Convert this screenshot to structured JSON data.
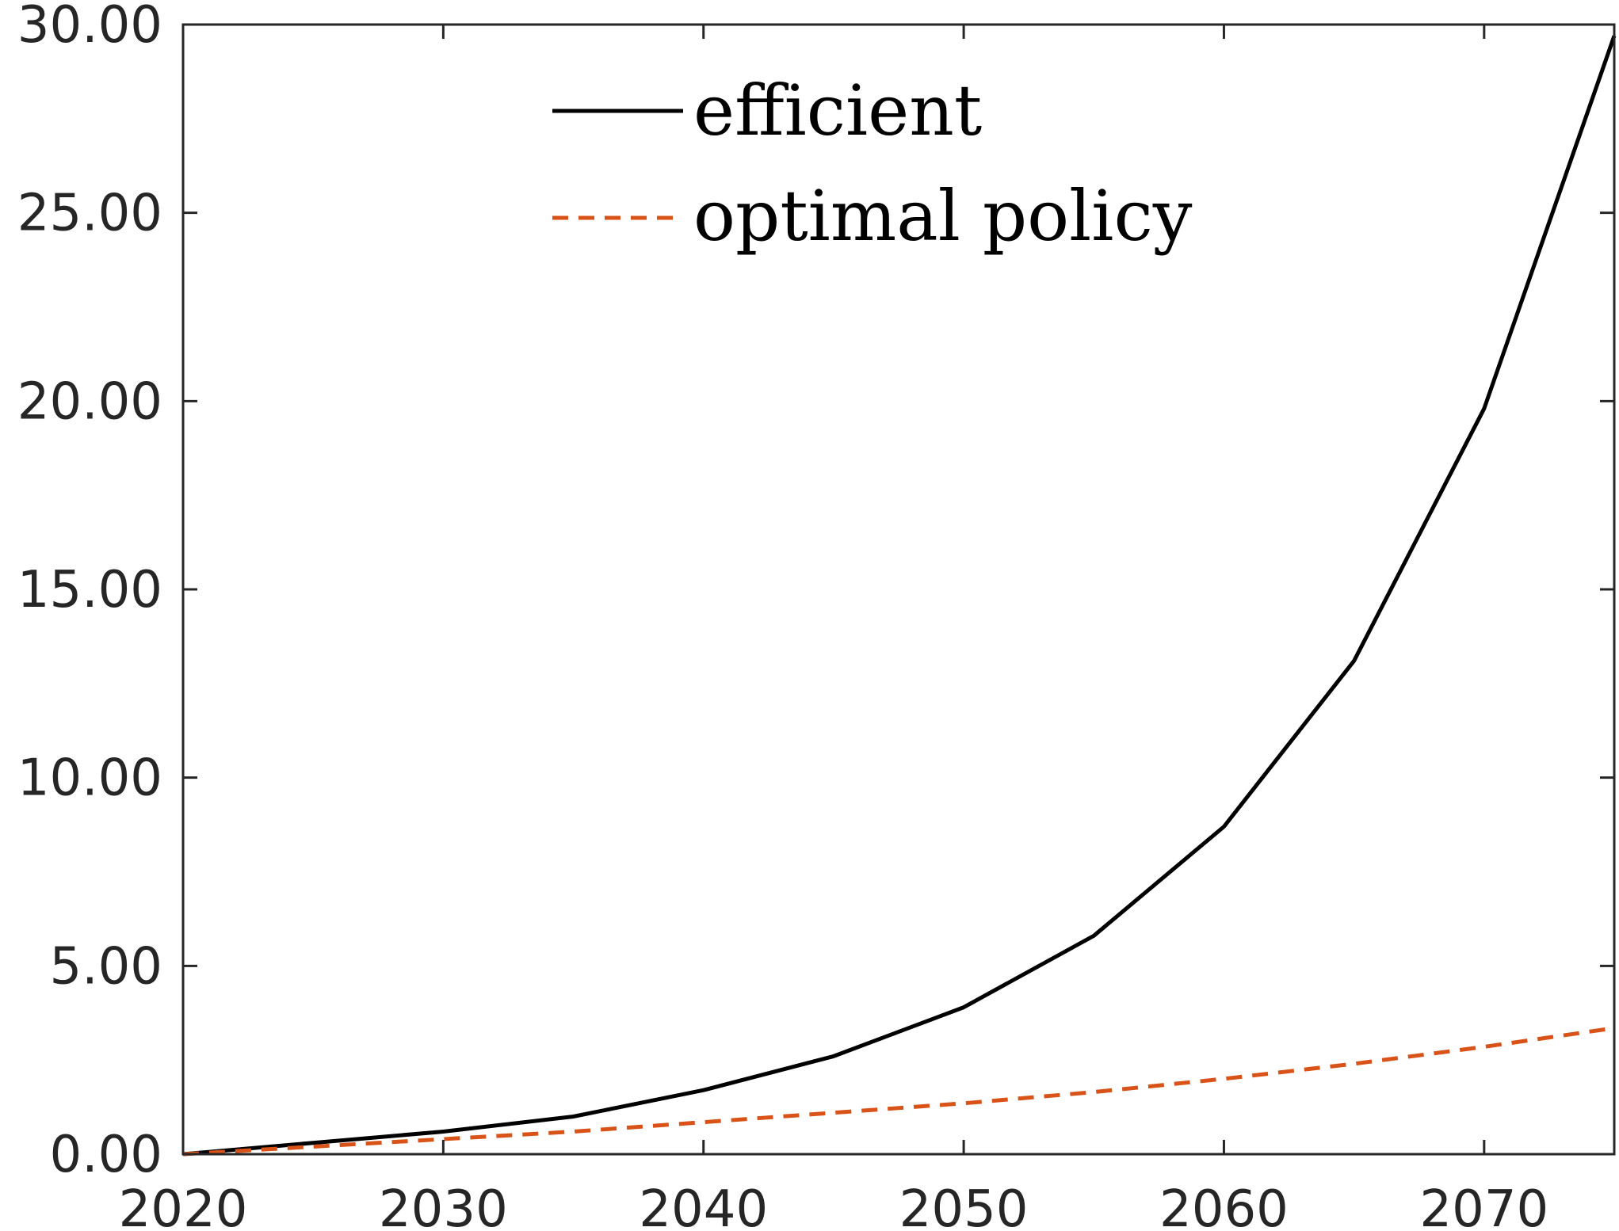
{
  "chart_data": {
    "type": "line",
    "title": "",
    "xlabel": "",
    "ylabel": "",
    "xlim": [
      2020,
      2075
    ],
    "ylim": [
      0,
      30
    ],
    "x_ticks": [
      2020,
      2030,
      2040,
      2050,
      2060,
      2070
    ],
    "x_tick_labels": [
      "2020",
      "2030",
      "2040",
      "2050",
      "2060",
      "2070"
    ],
    "y_ticks": [
      0,
      5,
      10,
      15,
      20,
      25,
      30
    ],
    "y_tick_labels": [
      "0.00",
      "5.00",
      "10.00",
      "15.00",
      "20.00",
      "25.00",
      "30.00"
    ],
    "grid": false,
    "legend_position": "top-center",
    "x": [
      2020,
      2025,
      2030,
      2035,
      2040,
      2045,
      2050,
      2055,
      2060,
      2065,
      2070,
      2075
    ],
    "series": [
      {
        "name": "efficient",
        "color": "#000000",
        "style": "solid",
        "values": [
          0.0,
          0.3,
          0.6,
          1.0,
          1.7,
          2.6,
          3.9,
          5.8,
          8.7,
          13.1,
          19.8,
          29.7
        ]
      },
      {
        "name": "optimal policy",
        "color": "#D95319",
        "style": "dashed",
        "values": [
          0.0,
          0.2,
          0.4,
          0.6,
          0.85,
          1.1,
          1.35,
          1.65,
          2.0,
          2.4,
          2.85,
          3.35
        ]
      }
    ]
  }
}
